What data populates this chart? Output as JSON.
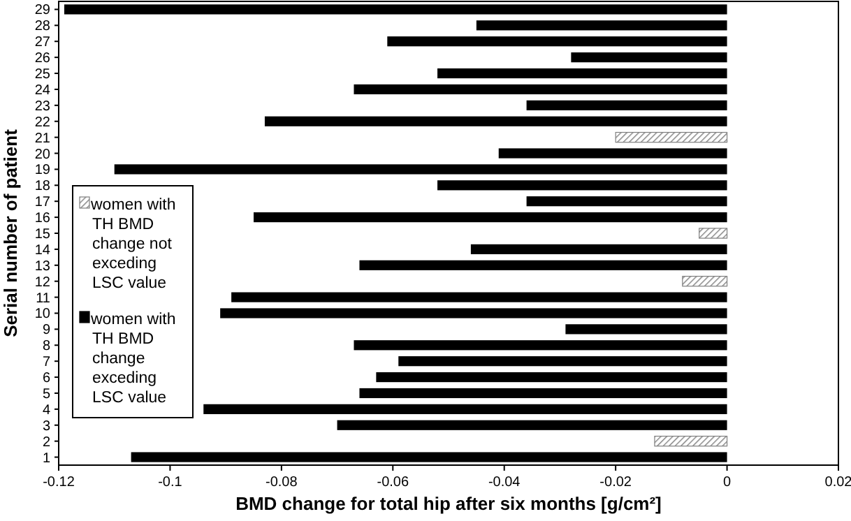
{
  "chart_data": {
    "type": "bar",
    "orientation": "horizontal",
    "categories": [
      "29",
      "28",
      "27",
      "26",
      "25",
      "24",
      "23",
      "22",
      "21",
      "20",
      "19",
      "18",
      "17",
      "16",
      "15",
      "14",
      "13",
      "12",
      "11",
      "10",
      "9",
      "8",
      "7",
      "6",
      "5",
      "4",
      "3",
      "2",
      "1"
    ],
    "series": [
      {
        "name": "women with TH BMD change not exceding LSC value",
        "color": "#7f7f7f",
        "values": [
          null,
          null,
          null,
          null,
          null,
          null,
          null,
          null,
          -0.02,
          null,
          null,
          null,
          null,
          null,
          -0.005,
          null,
          null,
          -0.008,
          null,
          null,
          null,
          null,
          null,
          null,
          null,
          null,
          null,
          -0.013,
          null
        ]
      },
      {
        "name": "women with TH BMD change exceding LSC value",
        "color": "#000000",
        "values": [
          -0.119,
          -0.045,
          -0.061,
          -0.028,
          -0.052,
          -0.067,
          -0.036,
          -0.083,
          null,
          -0.041,
          -0.11,
          -0.052,
          -0.036,
          -0.085,
          null,
          -0.046,
          -0.066,
          null,
          -0.089,
          -0.091,
          -0.029,
          -0.067,
          -0.059,
          -0.063,
          -0.066,
          -0.094,
          -0.07,
          null,
          -0.107
        ]
      }
    ],
    "xlim": [
      -0.12,
      0.02
    ],
    "xticks": [
      -0.12,
      -0.1,
      -0.08,
      -0.06,
      -0.04,
      -0.02,
      0,
      0.02
    ],
    "xlabel": "BMD change for total hip after six months [g/cm²]",
    "ylabel": "Serial number of patient",
    "legend": "left",
    "grid": false
  }
}
